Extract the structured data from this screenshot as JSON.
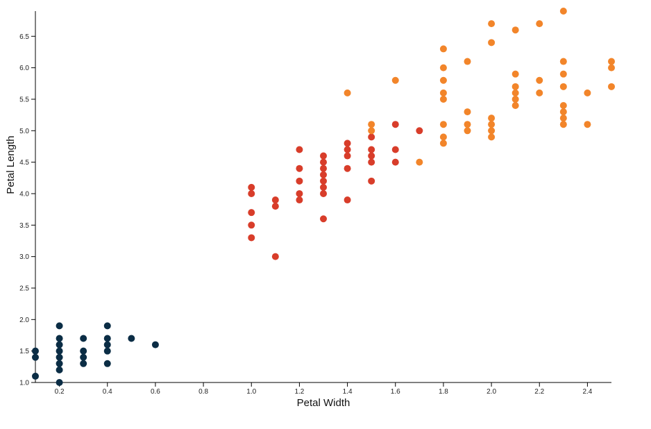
{
  "chart_data": {
    "type": "scatter",
    "xlabel": "Petal Width",
    "ylabel": "Petal Length",
    "xlim": [
      0.1,
      2.5
    ],
    "ylim": [
      1.0,
      6.9
    ],
    "x_ticks": [
      "0.2",
      "0.4",
      "0.6",
      "0.8",
      "1.0",
      "1.2",
      "1.4",
      "1.6",
      "1.8",
      "2.0",
      "2.2",
      "2.4"
    ],
    "y_ticks": [
      "1.0",
      "1.5",
      "2.0",
      "2.5",
      "3.0",
      "3.5",
      "4.0",
      "4.5",
      "5.0",
      "5.5",
      "6.0",
      "6.5"
    ],
    "grid": false,
    "series": [
      {
        "color": "#0b2d45",
        "points": [
          [
            0.1,
            1.1
          ],
          [
            0.1,
            1.4
          ],
          [
            0.1,
            1.5
          ],
          [
            0.2,
            1.0
          ],
          [
            0.2,
            1.2
          ],
          [
            0.2,
            1.3
          ],
          [
            0.2,
            1.4
          ],
          [
            0.2,
            1.5
          ],
          [
            0.2,
            1.6
          ],
          [
            0.2,
            1.7
          ],
          [
            0.2,
            1.9
          ],
          [
            0.3,
            1.3
          ],
          [
            0.3,
            1.4
          ],
          [
            0.3,
            1.5
          ],
          [
            0.3,
            1.7
          ],
          [
            0.4,
            1.3
          ],
          [
            0.4,
            1.5
          ],
          [
            0.4,
            1.6
          ],
          [
            0.4,
            1.7
          ],
          [
            0.4,
            1.9
          ],
          [
            0.5,
            1.7
          ],
          [
            0.6,
            1.6
          ]
        ]
      },
      {
        "color": "#d83d2a",
        "points": [
          [
            1.0,
            3.3
          ],
          [
            1.0,
            3.5
          ],
          [
            1.0,
            3.7
          ],
          [
            1.0,
            4.0
          ],
          [
            1.0,
            4.1
          ],
          [
            1.1,
            3.0
          ],
          [
            1.1,
            3.8
          ],
          [
            1.1,
            3.9
          ],
          [
            1.2,
            3.9
          ],
          [
            1.2,
            4.0
          ],
          [
            1.2,
            4.2
          ],
          [
            1.2,
            4.4
          ],
          [
            1.2,
            4.7
          ],
          [
            1.3,
            3.6
          ],
          [
            1.3,
            4.0
          ],
          [
            1.3,
            4.1
          ],
          [
            1.3,
            4.2
          ],
          [
            1.3,
            4.3
          ],
          [
            1.3,
            4.4
          ],
          [
            1.3,
            4.5
          ],
          [
            1.3,
            4.6
          ],
          [
            1.4,
            3.9
          ],
          [
            1.4,
            4.4
          ],
          [
            1.4,
            4.6
          ],
          [
            1.4,
            4.7
          ],
          [
            1.4,
            4.8
          ],
          [
            1.5,
            4.2
          ],
          [
            1.5,
            4.5
          ],
          [
            1.5,
            4.6
          ],
          [
            1.5,
            4.7
          ],
          [
            1.5,
            4.9
          ],
          [
            1.6,
            4.5
          ],
          [
            1.6,
            4.7
          ],
          [
            1.6,
            5.1
          ],
          [
            1.7,
            5.0
          ]
        ]
      },
      {
        "color": "#f2852a",
        "points": [
          [
            1.4,
            5.6
          ],
          [
            1.5,
            5.0
          ],
          [
            1.5,
            5.1
          ],
          [
            1.6,
            5.8
          ],
          [
            1.7,
            4.5
          ],
          [
            1.8,
            4.8
          ],
          [
            1.8,
            4.9
          ],
          [
            1.8,
            5.1
          ],
          [
            1.8,
            5.5
          ],
          [
            1.8,
            5.6
          ],
          [
            1.8,
            5.8
          ],
          [
            1.8,
            6.0
          ],
          [
            1.8,
            6.3
          ],
          [
            1.9,
            5.0
          ],
          [
            1.9,
            5.1
          ],
          [
            1.9,
            5.3
          ],
          [
            1.9,
            6.1
          ],
          [
            2.0,
            4.9
          ],
          [
            2.0,
            5.0
          ],
          [
            2.0,
            5.1
          ],
          [
            2.0,
            5.2
          ],
          [
            2.0,
            6.4
          ],
          [
            2.0,
            6.7
          ],
          [
            2.1,
            5.4
          ],
          [
            2.1,
            5.5
          ],
          [
            2.1,
            5.6
          ],
          [
            2.1,
            5.7
          ],
          [
            2.1,
            5.9
          ],
          [
            2.1,
            6.6
          ],
          [
            2.2,
            5.6
          ],
          [
            2.2,
            5.8
          ],
          [
            2.2,
            6.7
          ],
          [
            2.3,
            5.1
          ],
          [
            2.3,
            5.2
          ],
          [
            2.3,
            5.3
          ],
          [
            2.3,
            5.4
          ],
          [
            2.3,
            5.7
          ],
          [
            2.3,
            5.9
          ],
          [
            2.3,
            6.1
          ],
          [
            2.3,
            6.9
          ],
          [
            2.4,
            5.1
          ],
          [
            2.4,
            5.6
          ],
          [
            2.5,
            5.7
          ],
          [
            2.5,
            6.0
          ],
          [
            2.5,
            6.1
          ]
        ]
      }
    ]
  }
}
